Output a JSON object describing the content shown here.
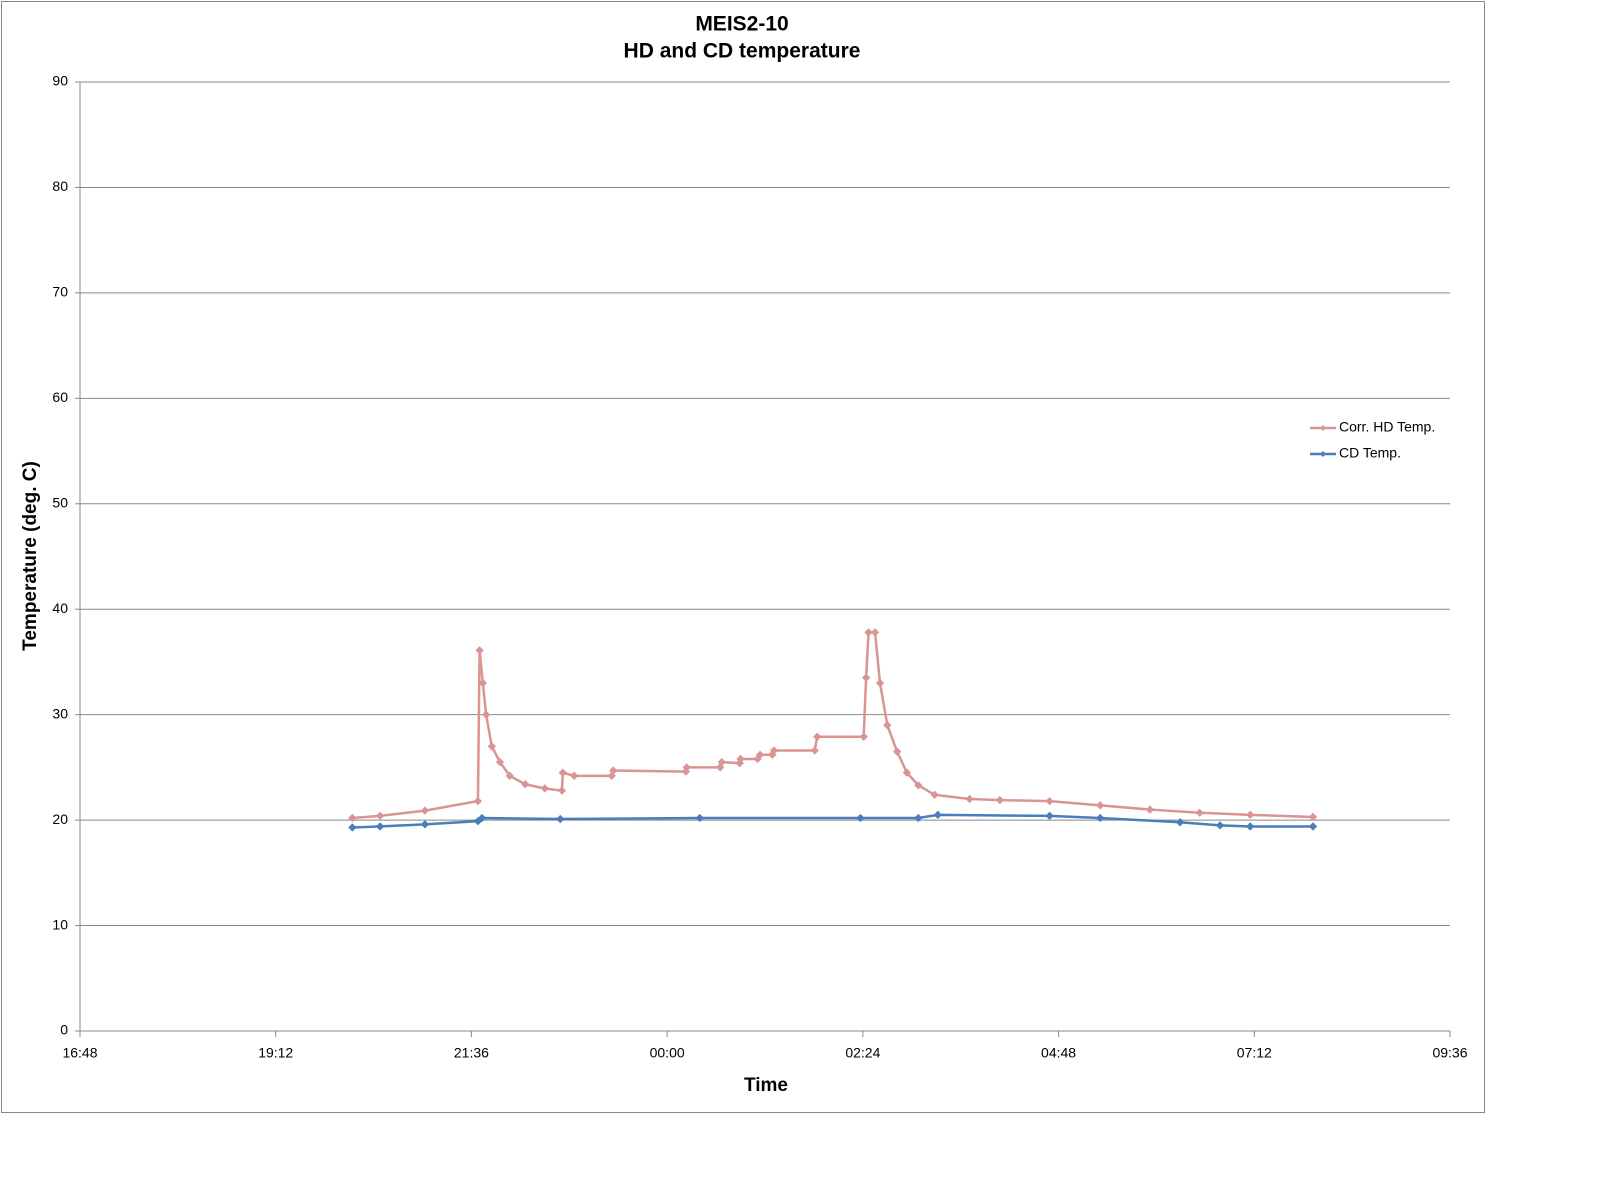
{
  "chart_data": {
    "type": "line",
    "title": "MEIS2-10",
    "subtitle": "HD and CD temperature",
    "x_label": "Time",
    "y_label": "Temperature (deg. C)",
    "xlim": [
      16.8,
      33.6
    ],
    "xticks": [
      {
        "value": 16.8,
        "label": "16:48"
      },
      {
        "value": 19.2,
        "label": "19:12"
      },
      {
        "value": 21.6,
        "label": "21:36"
      },
      {
        "value": 24.0,
        "label": "00:00"
      },
      {
        "value": 26.4,
        "label": "02:24"
      },
      {
        "value": 28.8,
        "label": "04:48"
      },
      {
        "value": 31.2,
        "label": "07:12"
      },
      {
        "value": 33.6,
        "label": "09:36"
      }
    ],
    "ylim": [
      0,
      90
    ],
    "yticks": [
      0,
      10,
      20,
      30,
      40,
      50,
      60,
      70,
      80,
      90
    ],
    "grid": true,
    "legend": "right",
    "series": [
      {
        "name": "Corr. HD Temp.",
        "color": "#d99594",
        "x": [
          20.14,
          20.48,
          21.03,
          21.68,
          21.7,
          21.74,
          21.78,
          21.85,
          21.95,
          22.07,
          22.26,
          22.5,
          22.71,
          22.72,
          22.86,
          23.32,
          23.34,
          24.23,
          24.24,
          24.65,
          24.67,
          24.89,
          24.9,
          25.11,
          25.14,
          25.29,
          25.31,
          25.81,
          25.84,
          26.41,
          26.44,
          26.47,
          26.55,
          26.61,
          26.7,
          26.82,
          26.94,
          27.08,
          27.28,
          27.71,
          28.08,
          28.69,
          29.31,
          29.92,
          30.53,
          31.15,
          31.92
        ],
        "values": [
          20.2,
          20.4,
          20.9,
          21.8,
          36.1,
          33,
          30,
          27,
          25.5,
          24.2,
          23.4,
          23,
          22.8,
          24.5,
          24.2,
          24.2,
          24.7,
          24.6,
          25.0,
          25.0,
          25.5,
          25.4,
          25.8,
          25.8,
          26.2,
          26.2,
          26.6,
          26.6,
          27.9,
          27.9,
          33.5,
          37.8,
          37.8,
          33,
          29,
          26.5,
          24.5,
          23.3,
          22.4,
          22.0,
          21.9,
          21.8,
          21.4,
          21.0,
          20.7,
          20.5,
          20.3
        ]
      },
      {
        "name": "CD Temp.",
        "color": "#4a7ebb",
        "x": [
          20.14,
          20.48,
          21.03,
          21.68,
          21.73,
          22.69,
          24.4,
          26.37,
          27.08,
          27.32,
          28.69,
          29.31,
          30.29,
          30.78,
          31.15,
          31.92
        ],
        "values": [
          19.3,
          19.4,
          19.6,
          19.9,
          20.2,
          20.1,
          20.2,
          20.2,
          20.2,
          20.5,
          20.4,
          20.2,
          19.8,
          19.5,
          19.4,
          19.4
        ]
      }
    ]
  }
}
